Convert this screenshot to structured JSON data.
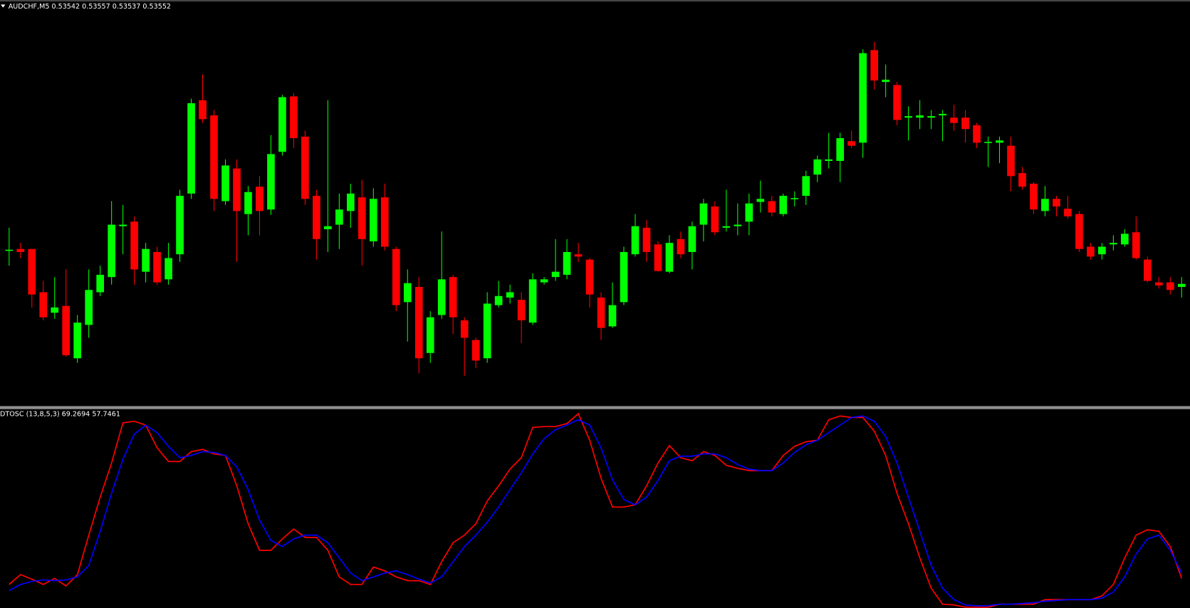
{
  "chart_data": [
    {
      "type": "candlestick",
      "title": "AUDCHF,M5  0.53542 0.53557 0.53537 0.53552",
      "up_color": "#00ff00",
      "down_color": "#ff0000",
      "ylim": [
        0.53394,
        0.53914
      ],
      "ohlc": [
        [
          0.53599,
          0.53629,
          0.53579,
          0.536
        ],
        [
          0.53601,
          0.53609,
          0.53589,
          0.53597
        ],
        [
          0.53601,
          0.53601,
          0.53524,
          0.53541
        ],
        [
          0.53544,
          0.53559,
          0.53507,
          0.53511
        ],
        [
          0.53517,
          0.53564,
          0.53509,
          0.53524
        ],
        [
          0.53526,
          0.53574,
          0.53459,
          0.53461
        ],
        [
          0.53457,
          0.53514,
          0.53451,
          0.53504
        ],
        [
          0.53501,
          0.53574,
          0.53484,
          0.53547
        ],
        [
          0.53544,
          0.53579,
          0.53539,
          0.53567
        ],
        [
          0.53564,
          0.53664,
          0.53554,
          0.53633
        ],
        [
          0.53631,
          0.53659,
          0.53594,
          0.53633
        ],
        [
          0.53637,
          0.53644,
          0.53554,
          0.53574
        ],
        [
          0.53571,
          0.53609,
          0.53557,
          0.53601
        ],
        [
          0.53597,
          0.53604,
          0.53554,
          0.53557
        ],
        [
          0.53561,
          0.53609,
          0.53554,
          0.53589
        ],
        [
          0.53594,
          0.53679,
          0.53584,
          0.53671
        ],
        [
          0.53674,
          0.53799,
          0.53667,
          0.53793
        ],
        [
          0.53797,
          0.53831,
          0.53767,
          0.53772
        ],
        [
          0.53777,
          0.53784,
          0.53651,
          0.53667
        ],
        [
          0.53664,
          0.53719,
          0.53659,
          0.53711
        ],
        [
          0.53707,
          0.53719,
          0.53584,
          0.53651
        ],
        [
          0.53647,
          0.53684,
          0.53619,
          0.53676
        ],
        [
          0.53683,
          0.53697,
          0.53619,
          0.53651
        ],
        [
          0.53653,
          0.53751,
          0.53646,
          0.53726
        ],
        [
          0.53729,
          0.53804,
          0.53724,
          0.53801
        ],
        [
          0.53802,
          0.53806,
          0.53734,
          0.53747
        ],
        [
          0.53749,
          0.53757,
          0.53659,
          0.53667
        ],
        [
          0.53671,
          0.53679,
          0.53587,
          0.53614
        ],
        [
          0.53627,
          0.53797,
          0.53597,
          0.53631
        ],
        [
          0.53633,
          0.53674,
          0.53601,
          0.53653
        ],
        [
          0.53651,
          0.53687,
          0.53629,
          0.53674
        ],
        [
          0.53669,
          0.53692,
          0.53579,
          0.53614
        ],
        [
          0.53611,
          0.53681,
          0.53604,
          0.53667
        ],
        [
          0.53669,
          0.53687,
          0.53599,
          0.53604
        ],
        [
          0.53601,
          0.53604,
          0.53519,
          0.53527
        ],
        [
          0.53531,
          0.53574,
          0.53479,
          0.53556
        ],
        [
          0.53551,
          0.53564,
          0.53437,
          0.53457
        ],
        [
          0.53464,
          0.53519,
          0.53451,
          0.53511
        ],
        [
          0.53514,
          0.53624,
          0.53509,
          0.53561
        ],
        [
          0.53564,
          0.53567,
          0.53489,
          0.53511
        ],
        [
          0.53507,
          0.53511,
          0.53434,
          0.53484
        ],
        [
          0.53481,
          0.53484,
          0.53444,
          0.53454
        ],
        [
          0.53457,
          0.53544,
          0.53451,
          0.53529
        ],
        [
          0.53527,
          0.53559,
          0.53524,
          0.53539
        ],
        [
          0.53537,
          0.53554,
          0.53529,
          0.53544
        ],
        [
          0.53534,
          0.53544,
          0.53477,
          0.53507
        ],
        [
          0.53504,
          0.53569,
          0.53501,
          0.53561
        ],
        [
          0.53557,
          0.53564,
          0.53554,
          0.53561
        ],
        [
          0.53564,
          0.53614,
          0.53559,
          0.53571
        ],
        [
          0.53567,
          0.53614,
          0.53561,
          0.53597
        ],
        [
          0.53594,
          0.53609,
          0.53584,
          0.53591
        ],
        [
          0.53587,
          0.53589,
          0.53524,
          0.53541
        ],
        [
          0.53537,
          0.53544,
          0.53481,
          0.53497
        ],
        [
          0.53499,
          0.53557,
          0.53497,
          0.53527
        ],
        [
          0.53531,
          0.53604,
          0.53527,
          0.53597
        ],
        [
          0.53594,
          0.53647,
          0.53591,
          0.53631
        ],
        [
          0.53629,
          0.53639,
          0.53584,
          0.53597
        ],
        [
          0.53607,
          0.53611,
          0.53571,
          0.53572
        ],
        [
          0.53571,
          0.53619,
          0.53569,
          0.53609
        ],
        [
          0.53614,
          0.53624,
          0.53589,
          0.53594
        ],
        [
          0.53597,
          0.53637,
          0.53574,
          0.53631
        ],
        [
          0.53633,
          0.53667,
          0.53611,
          0.53661
        ],
        [
          0.53657,
          0.53664,
          0.53619,
          0.53623
        ],
        [
          0.53629,
          0.53679,
          0.53624,
          0.53631
        ],
        [
          0.53631,
          0.53661,
          0.53619,
          0.53633
        ],
        [
          0.53637,
          0.53674,
          0.53619,
          0.53661
        ],
        [
          0.53663,
          0.53691,
          0.53649,
          0.53667
        ],
        [
          0.53664,
          0.53671,
          0.53644,
          0.53649
        ],
        [
          0.53647,
          0.53674,
          0.53644,
          0.53671
        ],
        [
          0.53667,
          0.53677,
          0.53657,
          0.53668
        ],
        [
          0.53671,
          0.53704,
          0.53659,
          0.53697
        ],
        [
          0.53699,
          0.53724,
          0.53689,
          0.53719
        ],
        [
          0.53717,
          0.53754,
          0.53707,
          0.53719
        ],
        [
          0.53717,
          0.53754,
          0.53689,
          0.53747
        ],
        [
          0.53743,
          0.53757,
          0.53734,
          0.53737
        ],
        [
          0.53741,
          0.53864,
          0.53721,
          0.53859
        ],
        [
          0.53863,
          0.53874,
          0.53811,
          0.53823
        ],
        [
          0.53821,
          0.53844,
          0.53801,
          0.53824
        ],
        [
          0.53817,
          0.53821,
          0.53764,
          0.53771
        ],
        [
          0.53774,
          0.53789,
          0.53744,
          0.53776
        ],
        [
          0.53774,
          0.53797,
          0.53759,
          0.53777
        ],
        [
          0.53774,
          0.53784,
          0.53759,
          0.53776
        ],
        [
          0.53777,
          0.53784,
          0.53743,
          0.53779
        ],
        [
          0.53774,
          0.53791,
          0.53757,
          0.53767
        ],
        [
          0.53774,
          0.53784,
          0.53741,
          0.53759
        ],
        [
          0.53764,
          0.53767,
          0.53734,
          0.53741
        ],
        [
          0.53741,
          0.53749,
          0.53709,
          0.53742
        ],
        [
          0.53741,
          0.53749,
          0.53714,
          0.53744
        ],
        [
          0.53737,
          0.53749,
          0.53677,
          0.53697
        ],
        [
          0.53701,
          0.53709,
          0.53679,
          0.53683
        ],
        [
          0.53687,
          0.53689,
          0.53647,
          0.53653
        ],
        [
          0.53651,
          0.53684,
          0.53644,
          0.53667
        ],
        [
          0.53667,
          0.53671,
          0.53644,
          0.53657
        ],
        [
          0.53654,
          0.53671,
          0.53641,
          0.53644
        ],
        [
          0.53647,
          0.53651,
          0.53597,
          0.53601
        ],
        [
          0.53604,
          0.53609,
          0.53587,
          0.53591
        ],
        [
          0.53594,
          0.53609,
          0.53587,
          0.53604
        ],
        [
          0.53607,
          0.53619,
          0.53599,
          0.53609
        ],
        [
          0.53607,
          0.53627,
          0.53604,
          0.53621
        ],
        [
          0.53623,
          0.53644,
          0.53587,
          0.53589
        ],
        [
          0.53587,
          0.53591,
          0.53557,
          0.53559
        ],
        [
          0.53557,
          0.53564,
          0.53549,
          0.53553
        ],
        [
          0.53557,
          0.53564,
          0.53541,
          0.53547
        ],
        [
          0.53551,
          0.53564,
          0.53537,
          0.53555
        ]
      ]
    },
    {
      "type": "line",
      "title": "DTOSC (13,8,5,3) 69.2694 57.7461",
      "ylim": [
        0,
        102
      ],
      "series": [
        {
          "color": "#ff0000",
          "values": [
            12,
            17.2,
            14.8,
            12,
            15.2,
            11.2,
            17.2,
            38,
            58,
            76,
            97.2,
            98,
            96,
            84,
            76.8,
            76.8,
            82,
            83.2,
            80.8,
            80,
            64,
            44,
            30,
            30,
            36,
            41.2,
            36.8,
            36.8,
            30,
            16,
            12,
            12,
            21.2,
            19.2,
            16,
            14,
            14,
            12,
            24,
            34,
            38,
            44,
            56,
            64,
            72.8,
            78.8,
            94.8,
            95.2,
            95.2,
            96.8,
            102,
            88,
            68,
            52.8,
            52.8,
            54,
            64,
            76,
            85.2,
            78.8,
            77.2,
            82,
            80,
            74.8,
            73.2,
            72,
            72,
            72,
            80,
            84.8,
            87.2,
            88,
            98.8,
            100.8,
            100,
            100,
            92.8,
            80,
            60,
            44,
            26,
            10,
            1.6,
            1.2,
            0,
            0,
            0,
            1.6,
            1.6,
            1.6,
            1.6,
            4,
            4,
            4,
            4,
            4,
            6,
            12,
            26,
            38,
            40.8,
            40,
            32,
            15.2
          ]
        },
        {
          "color": "#0000ff",
          "values": [
            8.8,
            12,
            13.6,
            14.4,
            14,
            14.4,
            16,
            22,
            40,
            60,
            78,
            91.2,
            96,
            92,
            84.8,
            78.8,
            80,
            82,
            81.6,
            80,
            74,
            62,
            46,
            35.2,
            32,
            36,
            38,
            38,
            34,
            26,
            18,
            14,
            16,
            18,
            19.2,
            17.2,
            14.8,
            12.8,
            16,
            24,
            32,
            38,
            44.8,
            52.8,
            62,
            70.8,
            80.8,
            88.8,
            93.6,
            96,
            98.8,
            96,
            84,
            67.2,
            56.8,
            54,
            58,
            66.8,
            77.2,
            79.6,
            79.6,
            80.8,
            80.8,
            78.8,
            75.2,
            72.8,
            72,
            72,
            76,
            81.6,
            85.6,
            88,
            92,
            96,
            100,
            100.8,
            98,
            90,
            76,
            58,
            40,
            22,
            10,
            4,
            1.2,
            0.8,
            0.8,
            1.6,
            1.6,
            2,
            2.4,
            3.2,
            3.6,
            4,
            4,
            4,
            4.8,
            8,
            16,
            28,
            36,
            38,
            30,
            18
          ]
        }
      ]
    }
  ]
}
